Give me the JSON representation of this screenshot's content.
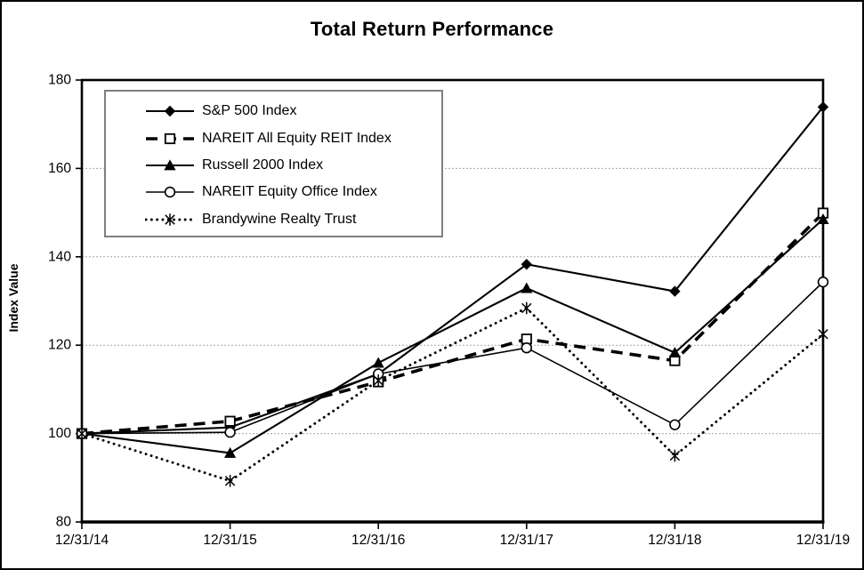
{
  "title": "Total Return Performance",
  "y_axis": {
    "title": "Index Value",
    "min": 80,
    "max": 180,
    "step": 20,
    "tick_labels": [
      "180",
      "160",
      "140",
      "120",
      "100",
      "80"
    ]
  },
  "x_axis": {
    "tick_labels": [
      "12/31/14",
      "12/31/15",
      "12/31/16",
      "12/31/17",
      "12/31/18",
      "12/31/19"
    ]
  },
  "colors": {
    "foreground": "#000000",
    "background": "#ffffff",
    "gridline": "#a8a8a8",
    "legend_border": "#7f7f7f"
  },
  "chart_data": {
    "type": "line",
    "title": "Total Return Performance",
    "xlabel": "",
    "ylabel": "Index Value",
    "ylim": [
      80,
      180
    ],
    "y_tick_step": 20,
    "grid": "horizontal-dashed",
    "legend_position": "inside-top-left",
    "x": [
      "12/31/14",
      "12/31/15",
      "12/31/16",
      "12/31/17",
      "12/31/18",
      "12/31/19"
    ],
    "series": [
      {
        "name": "S&P 500 Index",
        "line": "solid",
        "marker": "filled-diamond",
        "values": [
          100,
          101.4,
          113.5,
          138.3,
          132.2,
          173.9
        ]
      },
      {
        "name": "NAREIT All Equity REIT Index",
        "line": "dashed-thick",
        "marker": "open-square",
        "values": [
          100,
          102.8,
          111.7,
          121.4,
          116.5,
          149.9
        ]
      },
      {
        "name": "Russell 2000 Index",
        "line": "solid",
        "marker": "filled-triangle",
        "values": [
          100,
          95.6,
          116.0,
          132.9,
          118.3,
          148.5
        ]
      },
      {
        "name": "NAREIT Equity Office Index",
        "line": "solid-thin",
        "marker": "open-circle",
        "values": [
          100,
          100.3,
          113.5,
          119.4,
          102.0,
          134.3
        ]
      },
      {
        "name": "Brandywine Realty Trust",
        "line": "dotted",
        "marker": "star",
        "values": [
          100,
          89.3,
          112.0,
          128.4,
          95.0,
          122.5
        ]
      }
    ]
  }
}
